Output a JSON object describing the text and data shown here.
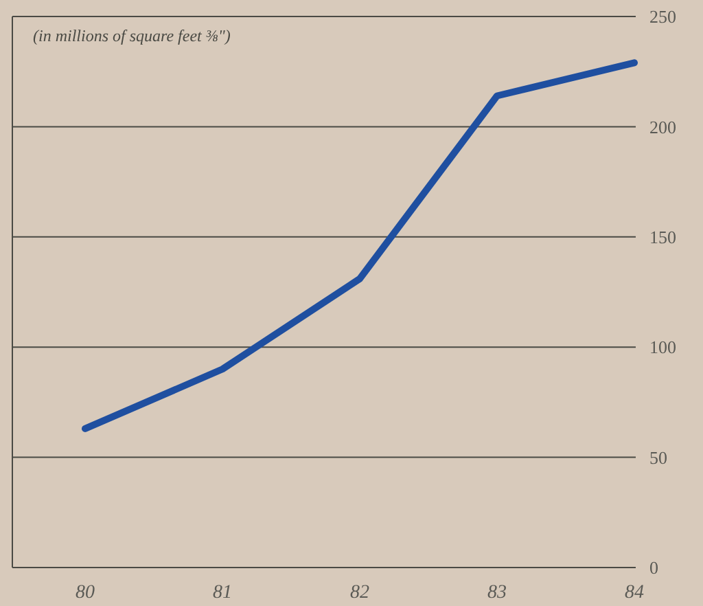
{
  "chart_data": {
    "type": "line",
    "title": "(in millions of square feet ⅜\")",
    "categories": [
      "80",
      "81",
      "82",
      "83",
      "84"
    ],
    "series": [
      {
        "color": "#1f4fa0",
        "values": [
          63,
          90,
          131,
          214,
          229
        ]
      }
    ],
    "ylim": [
      0,
      250
    ],
    "yticks": [
      0,
      50,
      100,
      150,
      200,
      250
    ],
    "grid": "y",
    "marker": "none",
    "line_style": "solid"
  }
}
